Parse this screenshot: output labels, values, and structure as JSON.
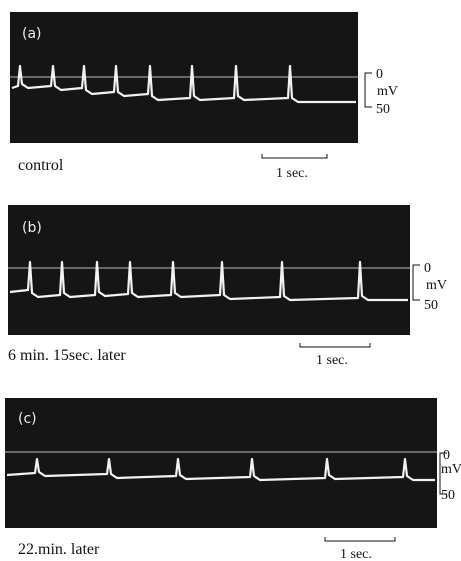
{
  "panels": [
    {
      "label": "(a)",
      "caption": "control",
      "zero": "0",
      "unit": "mV",
      "fifty": "50",
      "time": "1 sec."
    },
    {
      "label": "(b)",
      "caption": "6 min. 15sec. later",
      "zero": "0",
      "unit": "mV",
      "fifty": "50",
      "time": "1 sec."
    },
    {
      "label": "(c)",
      "caption": "22.min. later",
      "zero": "0",
      "unit": "mV",
      "fifty": "50",
      "time": "1 sec."
    }
  ]
}
